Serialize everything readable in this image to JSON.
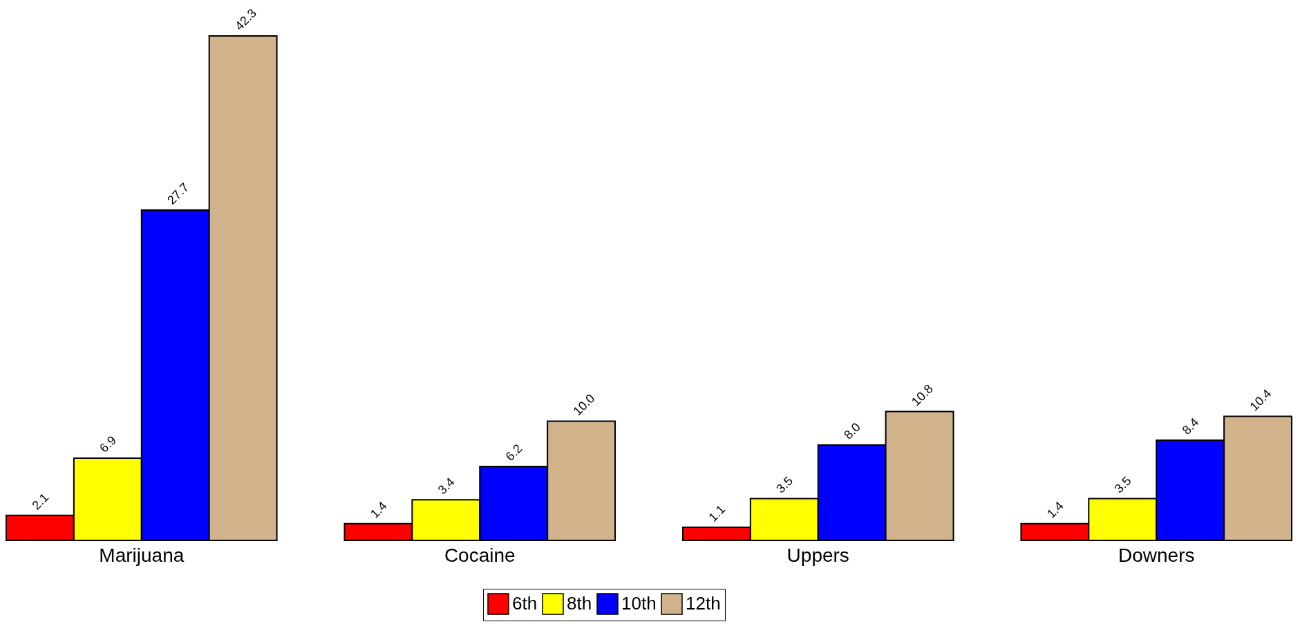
{
  "chart_data": {
    "type": "bar",
    "categories": [
      "Marijuana",
      "Cocaine",
      "Uppers",
      "Downers"
    ],
    "series": [
      {
        "name": "6th",
        "color": "#ff0000",
        "values": [
          2.1,
          1.4,
          1.1,
          1.4
        ],
        "value_labels": [
          "2.1",
          "1.4",
          "1.1",
          "1.4"
        ]
      },
      {
        "name": "8th",
        "color": "#ffff00",
        "values": [
          6.9,
          3.4,
          3.5,
          3.5
        ],
        "value_labels": [
          "6.9",
          "3.4",
          "3.5",
          "3.5"
        ]
      },
      {
        "name": "10th",
        "color": "#0000ff",
        "values": [
          27.7,
          6.2,
          8,
          8.4
        ],
        "value_labels": [
          "27.7",
          "6.2",
          "8.0",
          "8.4"
        ]
      },
      {
        "name": "12th",
        "color": "#d2b48c",
        "values": [
          42.3,
          10,
          10.8,
          10.4
        ],
        "value_labels": [
          "42.3",
          "10.0",
          "10.8",
          "10.4"
        ]
      }
    ],
    "legend": "bottom",
    "tick_labels": "x",
    "grid": false
  }
}
